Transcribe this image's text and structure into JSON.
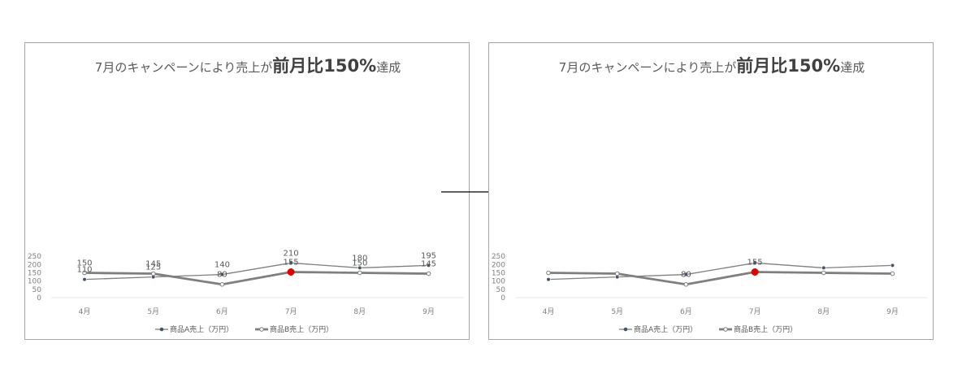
{
  "arrow_icon": "right-arrow-icon",
  "chart_data": [
    {
      "type": "line",
      "title": "7月のキャンペーンにより売上が前月比150%達成",
      "title_parts": {
        "pre": "7月のキャンペーンにより売上が",
        "bold": "前月比150%",
        "post": "達成"
      },
      "categories": [
        "4月",
        "5月",
        "6月",
        "7月",
        "8月",
        "9月"
      ],
      "series": [
        {
          "name": "商品A売上（万円）",
          "values": [
            110,
            125,
            140,
            210,
            180,
            195
          ],
          "color": "#7f7f7f",
          "marker_color": "#44546a",
          "show_labels": [
            true,
            true,
            true,
            true,
            true,
            true
          ]
        },
        {
          "name": "商品B売上（万円）",
          "values": [
            150,
            145,
            80,
            155,
            150,
            145
          ],
          "color": "#7f7f7f",
          "marker_color": "#ffffff",
          "highlight_color": "#e00000",
          "highlight_index": 3,
          "show_labels": [
            true,
            true,
            true,
            true,
            true,
            true
          ]
        }
      ],
      "yticks": [
        "0",
        "50",
        "100",
        "150",
        "200",
        "250"
      ],
      "ylim": [
        0,
        250
      ],
      "grid": false,
      "legend": "bottom"
    },
    {
      "type": "line",
      "title": "7月のキャンペーンにより売上が前月比150%達成",
      "title_parts": {
        "pre": "7月のキャンペーンにより売上が",
        "bold": "前月比150%",
        "post": "達成"
      },
      "categories": [
        "4月",
        "5月",
        "6月",
        "7月",
        "8月",
        "9月"
      ],
      "series": [
        {
          "name": "商品A売上（万円）",
          "values": [
            110,
            125,
            140,
            210,
            180,
            195
          ],
          "color": "#7f7f7f",
          "marker_color": "#44546a",
          "show_labels": [
            false,
            false,
            false,
            false,
            false,
            false
          ]
        },
        {
          "name": "商品B売上（万円）",
          "values": [
            150,
            145,
            80,
            155,
            150,
            145
          ],
          "color": "#7f7f7f",
          "marker_color": "#ffffff",
          "highlight_color": "#e00000",
          "highlight_index": 3,
          "show_labels": [
            false,
            false,
            true,
            true,
            false,
            false
          ]
        }
      ],
      "yticks": [
        "0",
        "50",
        "100",
        "150",
        "200",
        "250"
      ],
      "ylim": [
        0,
        250
      ],
      "grid": false,
      "legend": "bottom"
    }
  ]
}
